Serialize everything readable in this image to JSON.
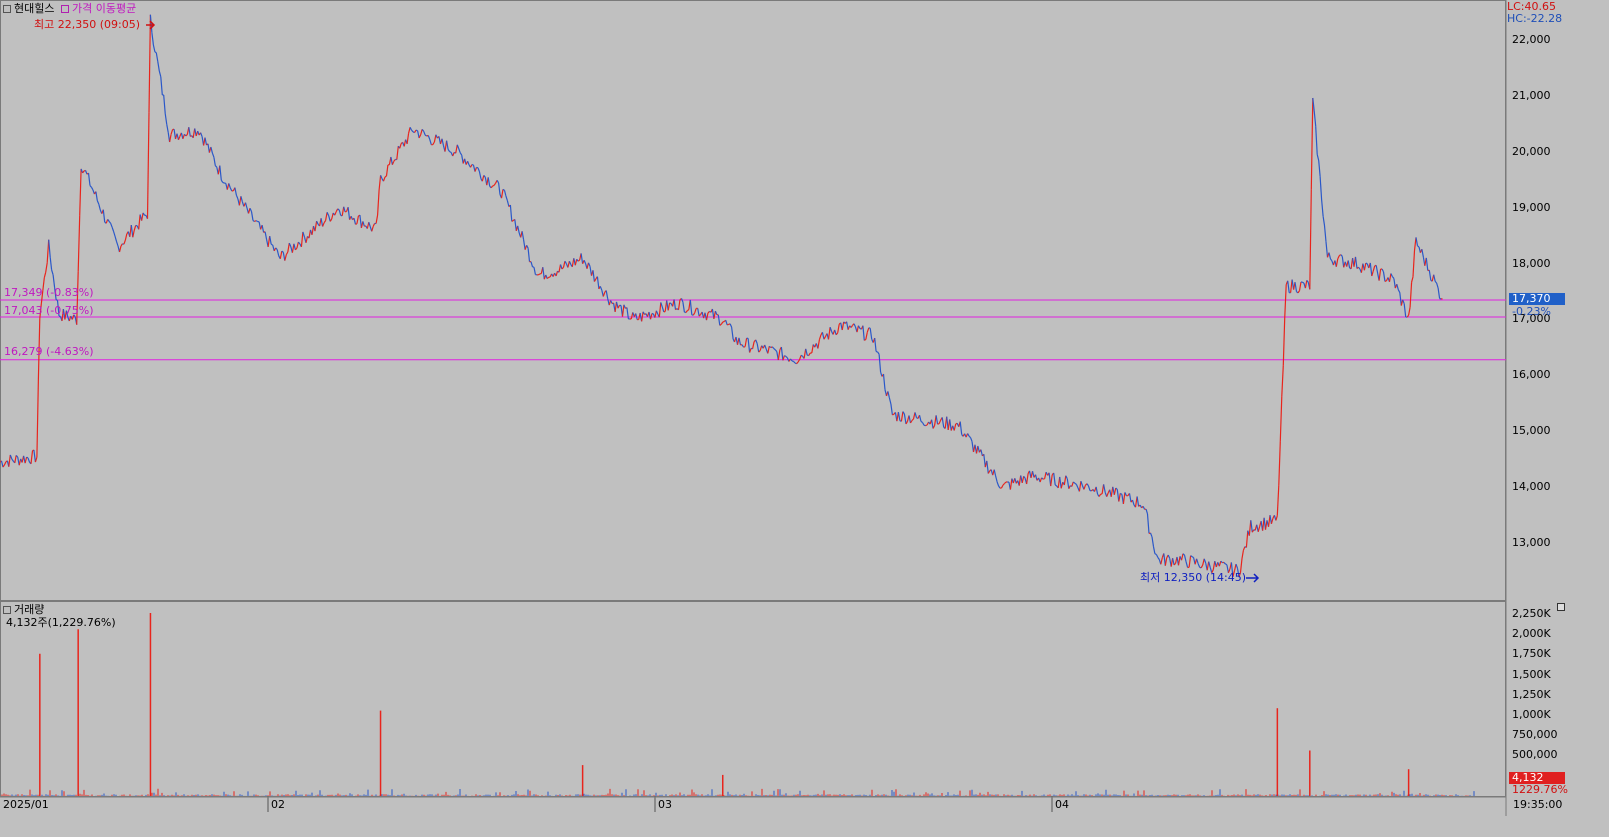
{
  "price_panel": {
    "title": "현대힐스",
    "indicator": "가격 이동평균",
    "max_label": "최고 22,350 (09:05)",
    "min_label": "최저 12,350 (14:45)",
    "lc": "LC:40.65",
    "hc": "HC:-22.28",
    "levels": [
      {
        "label": "17,349 (-0.83%)",
        "value": 17349
      },
      {
        "label": "17,043 (-0.75%)",
        "value": 17043
      },
      {
        "label": "16,279 (-4.63%)",
        "value": 16279
      }
    ],
    "current_price": "17,370",
    "current_change": "-0.23%",
    "y_ticks": [
      "22,000",
      "21,000",
      "20,000",
      "19,000",
      "18,000",
      "17,000",
      "16,000",
      "15,000",
      "14,000",
      "13,000"
    ]
  },
  "volume_panel": {
    "title": "거래량",
    "summary": "4,132주(1,229.76%)",
    "current_volume": "4,132",
    "current_pct": "1229.76%",
    "y_ticks": [
      "2,250K",
      "2,000K",
      "1,750K",
      "1,500K",
      "1,250K",
      "1,000K",
      "750,000",
      "500,000"
    ]
  },
  "x_axis": {
    "labels": [
      "2025/01",
      "02",
      "03",
      "04"
    ],
    "time": "19:35:00"
  },
  "chart_data": {
    "type": "line",
    "x_label_months": [
      "2025/01",
      "02",
      "03",
      "04"
    ],
    "price_range": [
      12350,
      22350
    ],
    "keypoints": [
      {
        "x": 0.0,
        "price": 14450
      },
      {
        "x": 0.025,
        "price": 14550
      },
      {
        "x": 0.027,
        "price": 17100
      },
      {
        "x": 0.033,
        "price": 18300
      },
      {
        "x": 0.04,
        "price": 17100
      },
      {
        "x": 0.052,
        "price": 17000
      },
      {
        "x": 0.055,
        "price": 19800
      },
      {
        "x": 0.08,
        "price": 18300
      },
      {
        "x": 0.1,
        "price": 18900
      },
      {
        "x": 0.102,
        "price": 22350
      },
      {
        "x": 0.115,
        "price": 20300
      },
      {
        "x": 0.135,
        "price": 20400
      },
      {
        "x": 0.15,
        "price": 19600
      },
      {
        "x": 0.19,
        "price": 18100
      },
      {
        "x": 0.23,
        "price": 19000
      },
      {
        "x": 0.255,
        "price": 18600
      },
      {
        "x": 0.258,
        "price": 19500
      },
      {
        "x": 0.28,
        "price": 20400
      },
      {
        "x": 0.31,
        "price": 20000
      },
      {
        "x": 0.34,
        "price": 19300
      },
      {
        "x": 0.365,
        "price": 17800
      },
      {
        "x": 0.38,
        "price": 17900
      },
      {
        "x": 0.395,
        "price": 18100
      },
      {
        "x": 0.415,
        "price": 17300
      },
      {
        "x": 0.43,
        "price": 17000
      },
      {
        "x": 0.46,
        "price": 17300
      },
      {
        "x": 0.49,
        "price": 17000
      },
      {
        "x": 0.5,
        "price": 16600
      },
      {
        "x": 0.54,
        "price": 16300
      },
      {
        "x": 0.57,
        "price": 16900
      },
      {
        "x": 0.592,
        "price": 16700
      },
      {
        "x": 0.605,
        "price": 15300
      },
      {
        "x": 0.65,
        "price": 15100
      },
      {
        "x": 0.68,
        "price": 14000
      },
      {
        "x": 0.7,
        "price": 14200
      },
      {
        "x": 0.74,
        "price": 14000
      },
      {
        "x": 0.775,
        "price": 13700
      },
      {
        "x": 0.785,
        "price": 12700
      },
      {
        "x": 0.8,
        "price": 12700
      },
      {
        "x": 0.84,
        "price": 12500
      },
      {
        "x": 0.848,
        "price": 13300
      },
      {
        "x": 0.866,
        "price": 13400
      },
      {
        "x": 0.872,
        "price": 17600
      },
      {
        "x": 0.888,
        "price": 17600
      },
      {
        "x": 0.89,
        "price": 20900
      },
      {
        "x": 0.9,
        "price": 18100
      },
      {
        "x": 0.92,
        "price": 18000
      },
      {
        "x": 0.945,
        "price": 17700
      },
      {
        "x": 0.955,
        "price": 17000
      },
      {
        "x": 0.96,
        "price": 18400
      },
      {
        "x": 0.978,
        "price": 17370
      }
    ],
    "volume_spikes": [
      {
        "x": 0.027,
        "volume": 1750
      },
      {
        "x": 0.053,
        "volume": 2050
      },
      {
        "x": 0.102,
        "volume": 2250
      },
      {
        "x": 0.258,
        "volume": 1050
      },
      {
        "x": 0.395,
        "volume": 380
      },
      {
        "x": 0.49,
        "volume": 260
      },
      {
        "x": 0.866,
        "volume": 1080
      },
      {
        "x": 0.888,
        "volume": 560
      },
      {
        "x": 0.955,
        "volume": 330
      }
    ]
  },
  "colors": {
    "background": "#c0c0c0",
    "up": "#e8241c",
    "down": "#2a57c8",
    "level_line": "#e020e0",
    "max_label": "#d01010",
    "min_label": "#1020c0",
    "current_price_bg": "#2060c8",
    "current_volume_bg": "#e02020"
  }
}
